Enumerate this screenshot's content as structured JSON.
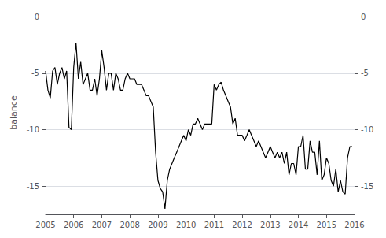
{
  "chart_data": {
    "type": "line",
    "ylabel": "balance",
    "xlim": [
      2005.0,
      2016.0
    ],
    "xticks": [
      2005,
      2006,
      2007,
      2008,
      2009,
      2010,
      2011,
      2012,
      2013,
      2014,
      2015,
      2016
    ],
    "ylim": [
      -17.5,
      0.5
    ],
    "yticks": [
      0,
      -5,
      -10,
      -15
    ],
    "y2lim": [
      -17.5,
      0.5
    ],
    "y2ticks": [
      0,
      -5,
      -10,
      -15
    ],
    "grid": true,
    "color": "#000000",
    "x": [
      2005.0,
      2005.083,
      2005.167,
      2005.25,
      2005.333,
      2005.417,
      2005.5,
      2005.583,
      2005.667,
      2005.75,
      2005.833,
      2005.917,
      2006.0,
      2006.083,
      2006.167,
      2006.25,
      2006.333,
      2006.417,
      2006.5,
      2006.583,
      2006.667,
      2006.75,
      2006.833,
      2006.917,
      2007.0,
      2007.083,
      2007.167,
      2007.25,
      2007.333,
      2007.417,
      2007.5,
      2007.583,
      2007.667,
      2007.75,
      2007.833,
      2007.917,
      2008.0,
      2008.083,
      2008.167,
      2008.25,
      2008.333,
      2008.417,
      2008.5,
      2008.583,
      2008.667,
      2008.75,
      2008.833,
      2008.917,
      2009.0,
      2009.083,
      2009.167,
      2009.25,
      2009.333,
      2009.417,
      2009.5,
      2009.583,
      2009.667,
      2009.75,
      2009.833,
      2009.917,
      2010.0,
      2010.083,
      2010.167,
      2010.25,
      2010.333,
      2010.417,
      2010.5,
      2010.583,
      2010.667,
      2010.75,
      2010.833,
      2010.917,
      2011.0,
      2011.083,
      2011.167,
      2011.25,
      2011.333,
      2011.417,
      2011.5,
      2011.583,
      2011.667,
      2011.75,
      2011.833,
      2011.917,
      2012.0,
      2012.083,
      2012.167,
      2012.25,
      2012.333,
      2012.417,
      2012.5,
      2012.583,
      2012.667,
      2012.75,
      2012.833,
      2012.917,
      2013.0,
      2013.083,
      2013.167,
      2013.25,
      2013.333,
      2013.417,
      2013.5,
      2013.583,
      2013.667,
      2013.75,
      2013.833,
      2013.917,
      2014.0,
      2014.083,
      2014.167,
      2014.25,
      2014.333,
      2014.417,
      2014.5,
      2014.583,
      2014.667,
      2014.75,
      2014.833,
      2014.917,
      2015.0,
      2015.083,
      2015.167,
      2015.25,
      2015.333,
      2015.417,
      2015.5,
      2015.583,
      2015.667,
      2015.75,
      2015.833,
      2015.917
    ],
    "values": [
      -4.8,
      -6.5,
      -7.2,
      -4.8,
      -4.5,
      -6.0,
      -5.0,
      -4.5,
      -5.5,
      -4.8,
      -9.8,
      -10.0,
      -4.5,
      -2.3,
      -5.5,
      -4.0,
      -6.0,
      -5.5,
      -5.0,
      -6.5,
      -6.5,
      -5.5,
      -7.0,
      -5.5,
      -3.0,
      -4.5,
      -6.5,
      -5.0,
      -5.0,
      -6.5,
      -5.0,
      -5.5,
      -6.5,
      -6.5,
      -5.5,
      -5.0,
      -5.5,
      -5.5,
      -5.5,
      -6.0,
      -6.0,
      -6.0,
      -6.5,
      -7.0,
      -7.0,
      -7.5,
      -8.0,
      -12.0,
      -14.5,
      -15.2,
      -15.5,
      -17.0,
      -14.5,
      -13.5,
      -13.0,
      -12.5,
      -12.0,
      -11.5,
      -11.0,
      -10.5,
      -11.0,
      -10.0,
      -10.5,
      -9.5,
      -9.5,
      -9.0,
      -9.5,
      -10.0,
      -9.5,
      -9.5,
      -9.5,
      -9.5,
      -6.0,
      -6.5,
      -6.0,
      -5.8,
      -6.5,
      -7.0,
      -7.5,
      -8.0,
      -9.5,
      -9.0,
      -10.5,
      -10.5,
      -10.5,
      -11.0,
      -10.5,
      -10.0,
      -10.5,
      -11.0,
      -11.5,
      -11.0,
      -11.5,
      -12.0,
      -12.5,
      -12.0,
      -11.5,
      -12.0,
      -12.5,
      -12.0,
      -12.5,
      -12.0,
      -13.0,
      -12.0,
      -14.0,
      -13.0,
      -13.0,
      -14.0,
      -11.5,
      -11.5,
      -10.5,
      -13.5,
      -13.5,
      -11.0,
      -12.0,
      -12.0,
      -14.0,
      -11.0,
      -14.5,
      -14.0,
      -12.5,
      -13.0,
      -14.5,
      -15.0,
      -13.5,
      -15.5,
      -14.5,
      -15.5,
      -15.7,
      -12.5,
      -11.5,
      -11.5
    ]
  }
}
